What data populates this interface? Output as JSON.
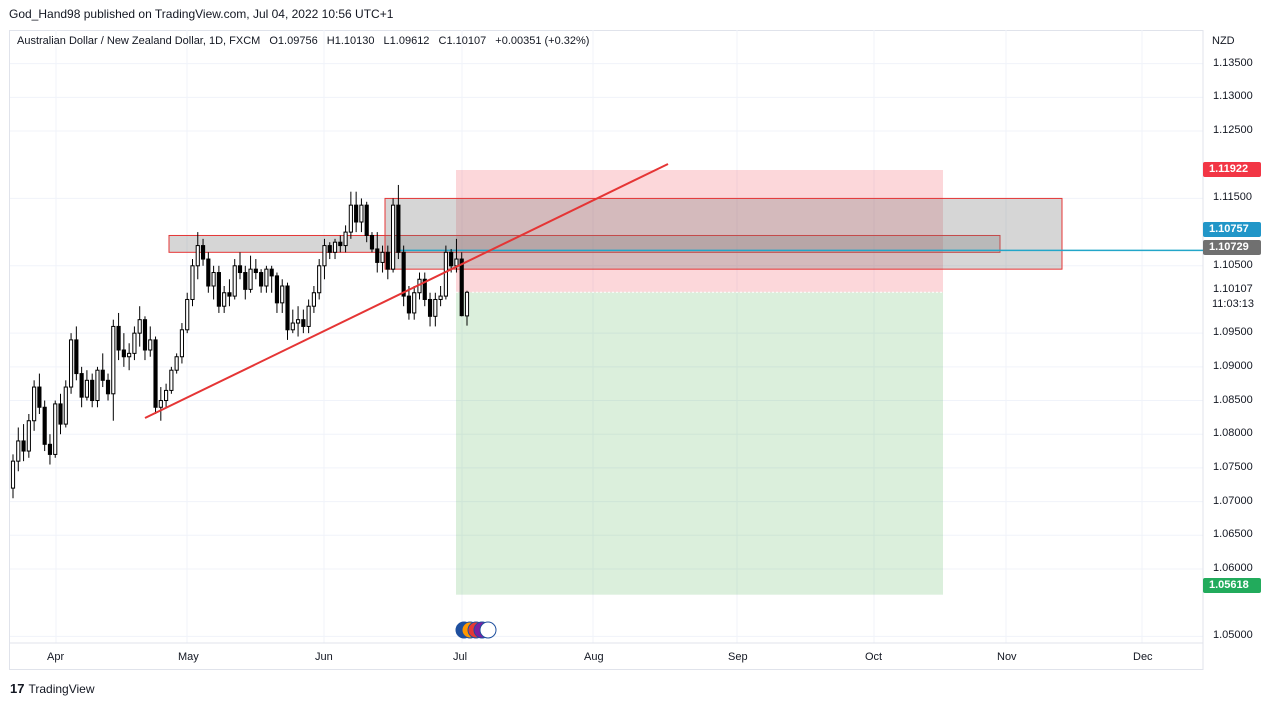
{
  "header": {
    "published": "God_Hand98 published on TradingView.com, Jul 04, 2022 10:56 UTC+1"
  },
  "legend": {
    "symbol": "Australian Dollar / New Zealand Dollar, 1D, FXCM",
    "open": "O1.09756",
    "high": "H1.10130",
    "low": "L1.09612",
    "close": "C1.10107",
    "change": "+0.00351 (+0.32%)"
  },
  "price_axis": {
    "currency": "NZD",
    "ticks": [
      "1.13500",
      "1.13000",
      "1.12500",
      "1.11500",
      "1.10500",
      "1.09500",
      "1.09000",
      "1.08500",
      "1.08000",
      "1.07500",
      "1.07000",
      "1.06500",
      "1.06000",
      "1.05000"
    ],
    "current_price": "1.10107",
    "countdown": "11:03:13",
    "tags": [
      {
        "value": "1.11922",
        "color": "#f23645"
      },
      {
        "value": "1.10757",
        "color": "#2196c8"
      },
      {
        "value": "1.10729",
        "color": "#707070"
      },
      {
        "value": "1.05618",
        "color": "#22ab5c"
      }
    ]
  },
  "time_axis": [
    "Apr",
    "May",
    "Jun",
    "Jul",
    "Aug",
    "Sep",
    "Oct",
    "Nov",
    "Dec"
  ],
  "footer": {
    "brand": "TradingView",
    "logo_mark": "17"
  },
  "colors": {
    "up": "#ffffff",
    "down": "#000000",
    "wick": "#000000",
    "trendline": "#e53535",
    "hline": "#23a6c9",
    "stop_zone": "rgba(242,54,69,0.2)",
    "target_zone": "rgba(76,175,80,0.2)",
    "supply_zone": "rgba(120,120,120,0.3)"
  },
  "chart_data": {
    "type": "candlestick",
    "symbol": "AUDNZD",
    "timeframe": "1D",
    "ylim": [
      1.045,
      1.14
    ],
    "x_labels": [
      "Apr",
      "May",
      "Jun",
      "Jul",
      "Aug",
      "Sep",
      "Oct",
      "Nov",
      "Dec"
    ],
    "candles_ohlc": [
      [
        1.072,
        1.077,
        1.0705,
        1.076
      ],
      [
        1.076,
        1.081,
        1.0745,
        1.079
      ],
      [
        1.079,
        1.0815,
        1.076,
        1.0775
      ],
      [
        1.0775,
        1.083,
        1.0765,
        1.082
      ],
      [
        1.082,
        1.088,
        1.0805,
        1.087
      ],
      [
        1.087,
        1.089,
        1.083,
        1.084
      ],
      [
        1.084,
        1.085,
        1.0775,
        1.0785
      ],
      [
        1.0785,
        1.08,
        1.0755,
        1.077
      ],
      [
        1.077,
        1.085,
        1.0765,
        1.0845
      ],
      [
        1.0845,
        1.086,
        1.08,
        1.0815
      ],
      [
        1.0815,
        1.088,
        1.081,
        1.087
      ],
      [
        1.087,
        1.095,
        1.086,
        1.094
      ],
      [
        1.094,
        1.096,
        1.088,
        1.089
      ],
      [
        1.089,
        1.09,
        1.084,
        1.0855
      ],
      [
        1.0855,
        1.0895,
        1.085,
        1.088
      ],
      [
        1.088,
        1.089,
        1.084,
        1.085
      ],
      [
        1.085,
        1.09,
        1.084,
        1.0895
      ],
      [
        1.0895,
        1.092,
        1.087,
        1.088
      ],
      [
        1.088,
        1.089,
        1.085,
        1.086
      ],
      [
        1.086,
        1.097,
        1.082,
        1.096
      ],
      [
        1.096,
        1.098,
        1.091,
        1.0925
      ],
      [
        1.0925,
        1.095,
        1.09,
        1.0915
      ],
      [
        1.0915,
        1.0935,
        1.0895,
        1.092
      ],
      [
        1.092,
        1.096,
        1.091,
        1.095
      ],
      [
        1.095,
        1.099,
        1.093,
        1.097
      ],
      [
        1.097,
        1.0975,
        1.091,
        1.0925
      ],
      [
        1.0925,
        1.096,
        1.0915,
        1.094
      ],
      [
        1.094,
        1.0945,
        1.083,
        1.084
      ],
      [
        1.084,
        1.087,
        1.082,
        1.085
      ],
      [
        1.085,
        1.0875,
        1.084,
        1.0865
      ],
      [
        1.0865,
        1.09,
        1.086,
        1.0895
      ],
      [
        1.0895,
        1.092,
        1.089,
        1.0915
      ],
      [
        1.0915,
        1.0965,
        1.0905,
        1.0955
      ],
      [
        1.0955,
        1.101,
        1.095,
        1.1
      ],
      [
        1.1,
        1.106,
        1.099,
        1.105
      ],
      [
        1.105,
        1.11,
        1.103,
        1.108
      ],
      [
        1.108,
        1.109,
        1.105,
        1.106
      ],
      [
        1.106,
        1.107,
        1.101,
        1.102
      ],
      [
        1.102,
        1.105,
        1.1,
        1.104
      ],
      [
        1.104,
        1.105,
        1.098,
        1.099
      ],
      [
        1.099,
        1.102,
        1.098,
        1.101
      ],
      [
        1.101,
        1.103,
        1.099,
        1.1005
      ],
      [
        1.1005,
        1.106,
        1.1,
        1.105
      ],
      [
        1.105,
        1.107,
        1.103,
        1.104
      ],
      [
        1.104,
        1.105,
        1.1,
        1.1015
      ],
      [
        1.1015,
        1.1065,
        1.101,
        1.1045
      ],
      [
        1.1045,
        1.106,
        1.103,
        1.104
      ],
      [
        1.104,
        1.1045,
        1.101,
        1.102
      ],
      [
        1.102,
        1.105,
        1.101,
        1.1045
      ],
      [
        1.1045,
        1.105,
        1.101,
        1.1035
      ],
      [
        1.1035,
        1.104,
        1.098,
        1.0995
      ],
      [
        1.0995,
        1.103,
        1.098,
        1.102
      ],
      [
        1.102,
        1.1025,
        1.094,
        1.0955
      ],
      [
        1.0955,
        1.0985,
        1.095,
        1.0965
      ],
      [
        1.0965,
        1.099,
        1.0945,
        1.097
      ],
      [
        1.097,
        1.0985,
        1.095,
        1.096
      ],
      [
        1.096,
        1.1,
        1.095,
        1.099
      ],
      [
        1.099,
        1.102,
        1.098,
        1.101
      ],
      [
        1.101,
        1.106,
        1.1,
        1.105
      ],
      [
        1.105,
        1.109,
        1.103,
        1.108
      ],
      [
        1.108,
        1.1085,
        1.106,
        1.107
      ],
      [
        1.107,
        1.109,
        1.106,
        1.1085
      ],
      [
        1.1085,
        1.1095,
        1.107,
        1.108
      ],
      [
        1.108,
        1.111,
        1.107,
        1.11
      ],
      [
        1.11,
        1.116,
        1.109,
        1.114
      ],
      [
        1.114,
        1.116,
        1.11,
        1.1115
      ],
      [
        1.1115,
        1.115,
        1.11,
        1.114
      ],
      [
        1.114,
        1.1145,
        1.1085,
        1.1095
      ],
      [
        1.1095,
        1.11,
        1.107,
        1.1075
      ],
      [
        1.1075,
        1.11,
        1.104,
        1.1055
      ],
      [
        1.1055,
        1.108,
        1.104,
        1.107
      ],
      [
        1.107,
        1.108,
        1.103,
        1.1045
      ],
      [
        1.1045,
        1.115,
        1.104,
        1.114
      ],
      [
        1.114,
        1.117,
        1.106,
        1.107
      ],
      [
        1.107,
        1.108,
        1.099,
        1.1005
      ],
      [
        1.1005,
        1.102,
        1.097,
        1.098
      ],
      [
        1.098,
        1.102,
        1.097,
        1.101
      ],
      [
        1.101,
        1.104,
        1.1,
        1.103
      ],
      [
        1.103,
        1.104,
        1.099,
        1.1
      ],
      [
        1.1,
        1.101,
        1.096,
        1.0975
      ],
      [
        1.0975,
        1.101,
        1.096,
        1.1
      ],
      [
        1.1,
        1.102,
        1.099,
        1.1005
      ],
      [
        1.1005,
        1.108,
        1.1,
        1.107
      ],
      [
        1.107,
        1.1075,
        1.104,
        1.105
      ],
      [
        1.105,
        1.109,
        1.104,
        1.106
      ],
      [
        1.106,
        1.107,
        1.0975,
        1.0976
      ],
      [
        1.09756,
        1.1013,
        1.09612,
        1.10107
      ]
    ],
    "annotations": {
      "trendline": {
        "from": [
          1.082,
          "mid-Apr"
        ],
        "to": [
          1.12,
          "mid-Aug"
        ]
      },
      "horizontal_line": 1.10729,
      "entry_price": 1.10107,
      "stop_loss": 1.11922,
      "take_profit": 1.05618,
      "supply_zones": [
        [
          1.107,
          1.1095
        ],
        [
          1.1045,
          1.115
        ]
      ]
    }
  }
}
